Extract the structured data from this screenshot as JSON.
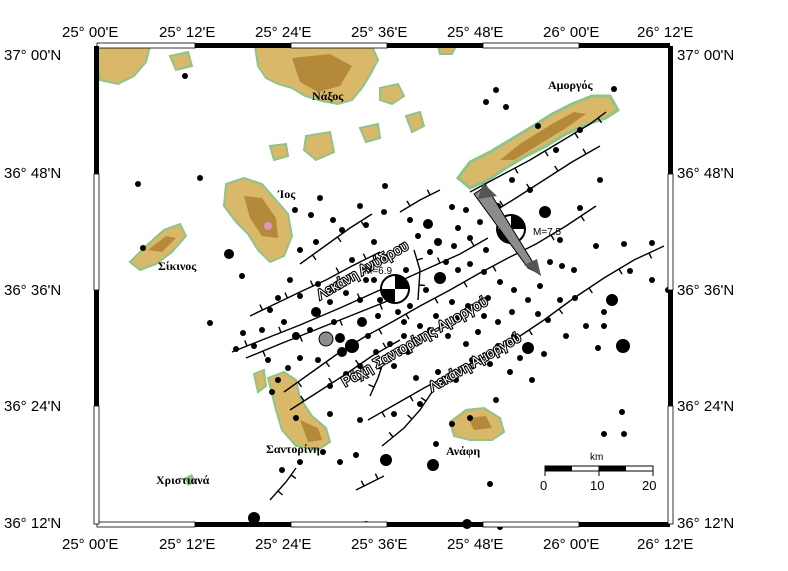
{
  "map": {
    "top_labels": [
      "25° 00'E",
      "25° 12'E",
      "25° 24'E",
      "25° 36'E",
      "25° 48'E",
      "26° 00'E",
      "26° 12'E"
    ],
    "bottom_labels": [
      "25° 00'E",
      "25° 12'E",
      "25° 24'E",
      "25° 36'E",
      "25° 48'E",
      "26° 00'E",
      "26° 12'E"
    ],
    "left_labels": [
      "37° 00'N",
      "36° 48'N",
      "36° 36'N",
      "36° 24'N",
      "36° 12'N"
    ],
    "right_labels": [
      "37° 00'N",
      "36° 48'N",
      "36° 36'N",
      "36° 24'N",
      "36° 12'N"
    ],
    "places": {
      "naxos": "Νάξος",
      "amorgos": "Αμοργός",
      "ios": "Ίος",
      "sikinos": "Σίκινος",
      "santorini": "Σαντορίνη",
      "anafi": "Ανάφη",
      "christiana": "Χριστιανά"
    },
    "basins": {
      "anydrou": "Λεκάνη Ανύδρου",
      "ridge": "Ράχη Σαντορίνης-Αμοργού",
      "amorgou": "Λεκάνη Αμοργού"
    },
    "events": {
      "m69": "M=6.9",
      "m75": "M=7.5"
    },
    "scale": {
      "unit": "km",
      "labels": [
        "0",
        "10",
        "20"
      ]
    },
    "colors": {
      "land_low": "#d9b869",
      "land_mid": "#b48a3a",
      "lowland": "#8ec48a",
      "sea": "#ffffff"
    }
  }
}
